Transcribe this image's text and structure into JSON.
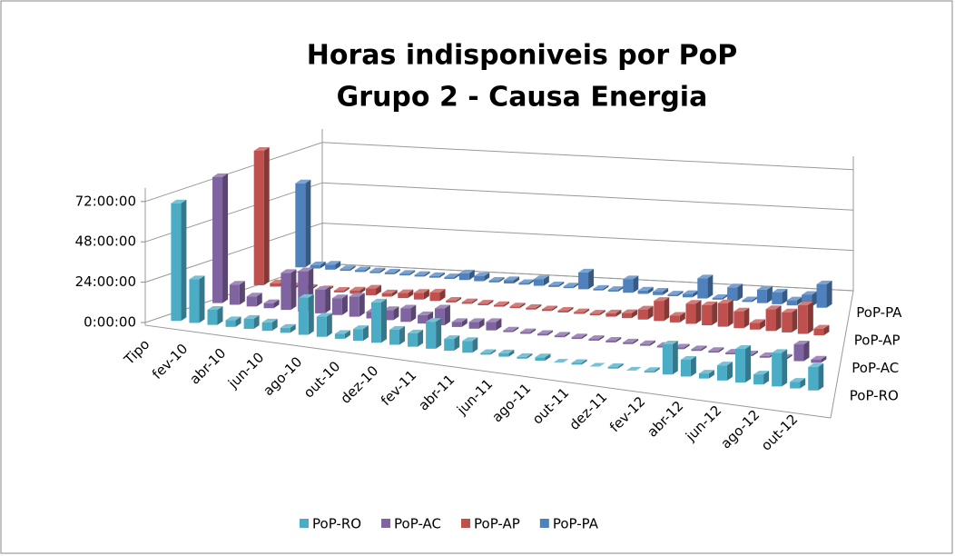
{
  "chart_data": {
    "type": "bar3d",
    "title": "Horas indisponiveis por PoP",
    "subtitle": "Grupo 2 - Causa Energia",
    "categories": [
      "Tipo",
      null,
      "fev-10",
      null,
      "abr-10",
      null,
      "jun-10",
      null,
      "ago-10",
      null,
      "out-10",
      null,
      "dez-10",
      null,
      "fev-11",
      null,
      "abr-11",
      null,
      "jun-11",
      null,
      "ago-11",
      null,
      "out-11",
      null,
      "dez-11",
      null,
      "fev-12",
      null,
      "abr-12",
      null,
      "jun-12",
      null,
      "ago-12",
      null,
      "out-12",
      null
    ],
    "series": [
      {
        "name": "PoP-RO",
        "color": "#4bacc6",
        "values": [
          70,
          26,
          9,
          4,
          6,
          5,
          3,
          22,
          12,
          3,
          7,
          24,
          9,
          8,
          16,
          7,
          7,
          1,
          2,
          1,
          2,
          0,
          1,
          0,
          1,
          0,
          1,
          18,
          10,
          3,
          9,
          20,
          6,
          20,
          4,
          14
        ]
      },
      {
        "name": "PoP-AC",
        "color": "#8064a2",
        "values": [
          75,
          12,
          6,
          3,
          22,
          24,
          14,
          10,
          12,
          4,
          6,
          8,
          5,
          10,
          3,
          4,
          5,
          1,
          1,
          1,
          1,
          1,
          1,
          1,
          1,
          1,
          1,
          1,
          1,
          1,
          1,
          1,
          1,
          1,
          10,
          2
        ]
      },
      {
        "name": "PoP-AP",
        "color": "#c0504d",
        "values": [
          80,
          2,
          1,
          1,
          1,
          1,
          2,
          4,
          2,
          3,
          4,
          5,
          1,
          1,
          1,
          1,
          1,
          1,
          1,
          1,
          1,
          1,
          2,
          3,
          6,
          12,
          4,
          12,
          12,
          14,
          10,
          4,
          13,
          12,
          17,
          4
        ]
      },
      {
        "name": "PoP-PA",
        "color": "#4f81bd",
        "values": [
          50,
          2,
          3,
          1,
          1,
          1,
          1,
          1,
          1,
          1,
          1,
          4,
          3,
          1,
          2,
          1,
          4,
          1,
          1,
          10,
          1,
          1,
          8,
          2,
          2,
          1,
          2,
          12,
          1,
          8,
          1,
          8,
          7,
          3,
          7,
          14
        ]
      }
    ],
    "ylim": [
      0,
      80
    ],
    "yticks": [
      {
        "value": 0,
        "label": "0:00:00"
      },
      {
        "value": 24,
        "label": "24:00:00"
      },
      {
        "value": 48,
        "label": "48:00:00"
      },
      {
        "value": 72,
        "label": "72:00:00"
      }
    ],
    "grid": true,
    "legend": "bottom"
  }
}
